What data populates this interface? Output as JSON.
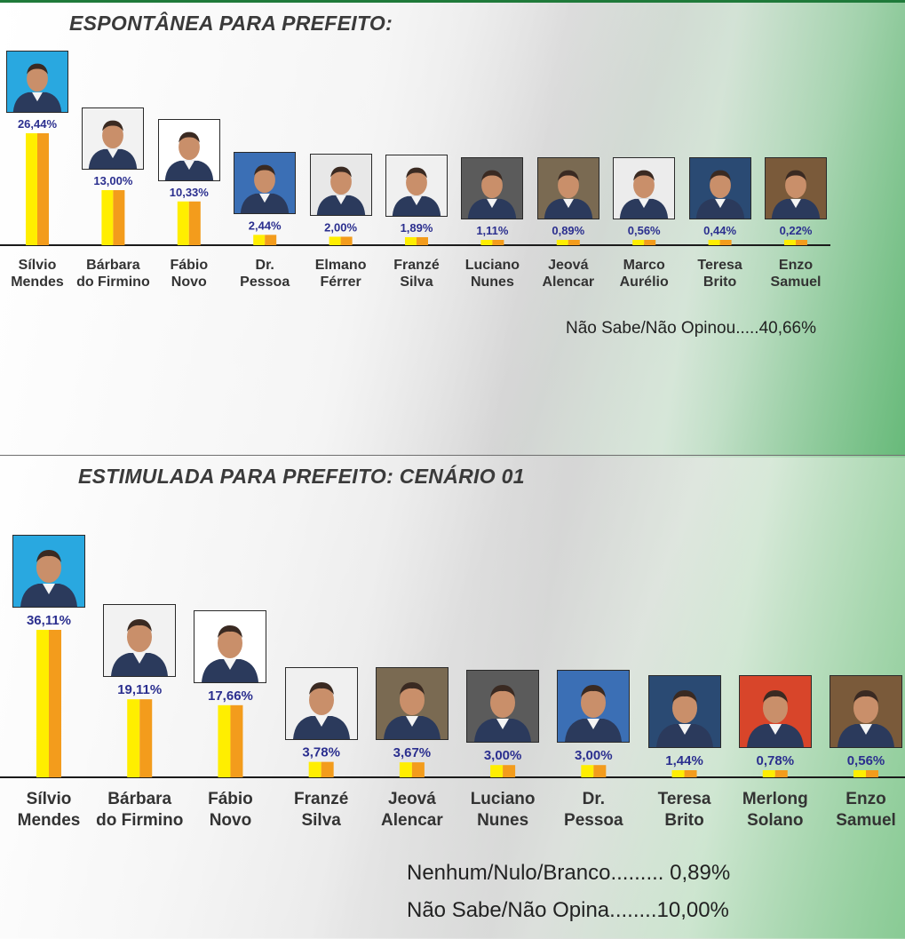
{
  "chart_data": [
    {
      "type": "bar",
      "title": "ESPONTÂNEA PARA PREFEITO:",
      "categories": [
        "Sílvio Mendes",
        "Bárbara do Firmino",
        "Fábio Novo",
        "Dr. Pessoa",
        "Elmano Férrer",
        "Franzé Silva",
        "Luciano Nunes",
        "Jeová Alencar",
        "Marco Aurélio",
        "Teresa Brito",
        "Enzo Samuel"
      ],
      "name_lines": [
        [
          "Sílvio",
          "Mendes"
        ],
        [
          "Bárbara",
          "do Firmino"
        ],
        [
          "Fábio",
          "Novo"
        ],
        [
          "Dr.",
          "Pessoa"
        ],
        [
          "Elmano",
          "Férrer"
        ],
        [
          "Franzé",
          "Silva"
        ],
        [
          "Luciano",
          "Nunes"
        ],
        [
          "Jeová",
          "Alencar"
        ],
        [
          "Marco",
          "Aurélio"
        ],
        [
          "Teresa",
          "Brito"
        ],
        [
          "Enzo",
          "Samuel"
        ]
      ],
      "values": [
        26.44,
        13.0,
        10.33,
        2.44,
        2.0,
        1.89,
        1.11,
        0.89,
        0.56,
        0.44,
        0.22
      ],
      "value_labels": [
        "26,44%",
        "13,00%",
        "10,33%",
        "2,44%",
        "2,00%",
        "1,89%",
        "1,11%",
        "0,89%",
        "0,56%",
        "0,44%",
        "0,22%"
      ],
      "photo_backgrounds": [
        "#29a8e0",
        "#f2f2f2",
        "#ffffff",
        "#3b6fb5",
        "#e8e8e8",
        "#f0f0f0",
        "#5b5b5b",
        "#7a6a52",
        "#ececec",
        "#2a4a73",
        "#7a5a3a"
      ],
      "bar_colors": [
        "#ffee00",
        "#f39c1c"
      ],
      "note": "Não Sabe/Não Opinou.....40,66%"
    },
    {
      "type": "bar",
      "title": "ESTIMULADA PARA PREFEITO:  CENÁRIO 01",
      "categories": [
        "Sílvio Mendes",
        "Bárbara do Firmino",
        "Fábio Novo",
        "Franzé Silva",
        "Jeová Alencar",
        "Luciano Nunes",
        "Dr. Pessoa",
        "Teresa Brito",
        "Merlong Solano",
        "Enzo Samuel"
      ],
      "name_lines": [
        [
          "Sílvio",
          "Mendes"
        ],
        [
          "Bárbara",
          "do Firmino"
        ],
        [
          "Fábio",
          "Novo"
        ],
        [
          "Franzé",
          "Silva"
        ],
        [
          "Jeová",
          "Alencar"
        ],
        [
          "Luciano",
          "Nunes"
        ],
        [
          "Dr.",
          "Pessoa"
        ],
        [
          "Teresa",
          "Brito"
        ],
        [
          "Merlong",
          "Solano"
        ],
        [
          "Enzo",
          "Samuel"
        ]
      ],
      "values": [
        36.11,
        19.11,
        17.66,
        3.78,
        3.67,
        3.0,
        3.0,
        1.44,
        0.78,
        0.56
      ],
      "value_labels": [
        "36,11%",
        "19,11%",
        "17,66%",
        "3,78%",
        "3,67%",
        "3,00%",
        "3,00%",
        "1,44%",
        "0,78%",
        "0,56%"
      ],
      "photo_backgrounds": [
        "#29a8e0",
        "#f2f2f2",
        "#ffffff",
        "#f0f0f0",
        "#7a6a52",
        "#5b5b5b",
        "#3b6fb5",
        "#2a4a73",
        "#d8452a",
        "#7a5a3a"
      ],
      "bar_colors": [
        "#ffee00",
        "#f39c1c"
      ],
      "notes": [
        "Nenhum/Nulo/Branco......... 0,89%",
        "Não Sabe/Não Opina........10,00%"
      ]
    }
  ]
}
